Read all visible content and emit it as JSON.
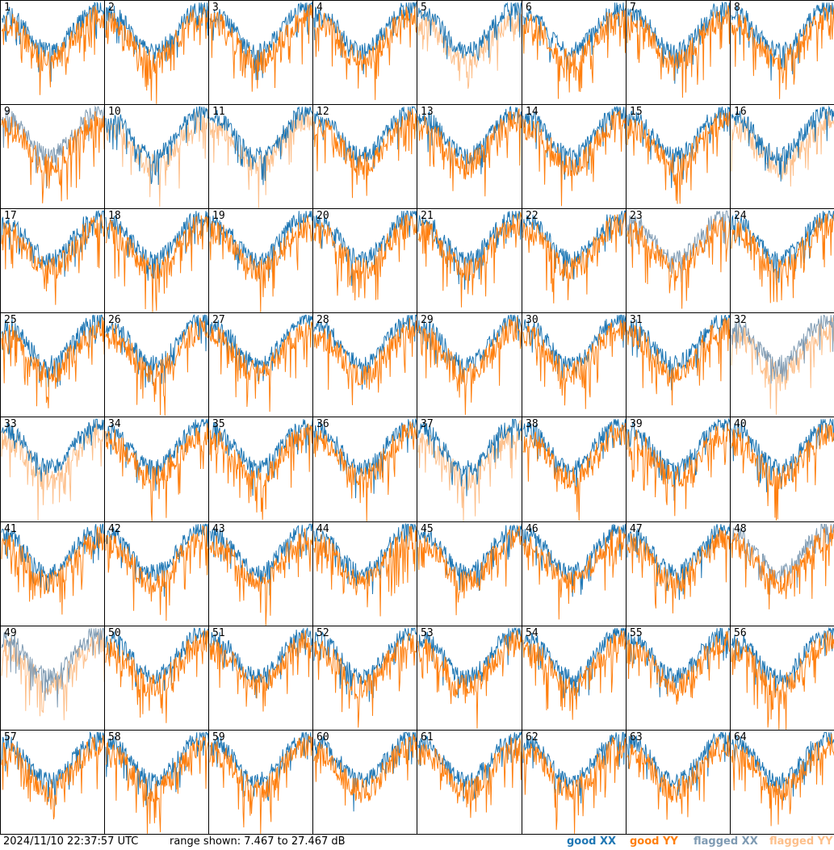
{
  "chart_data": {
    "type": "line",
    "layout": "8x8 small multiples of spectra",
    "timestamp": "2024/11/10 22:37:57 UTC",
    "range_text": "range shown: 7.467 to 27.467 dB",
    "ylim": [
      7.467,
      27.467
    ],
    "legend": [
      {
        "label": "good",
        "pol": "XX",
        "color": "#1f77b4"
      },
      {
        "label": "good",
        "pol": "YY",
        "color": "#ff7f0e"
      },
      {
        "label": "flagged",
        "pol": "XX",
        "color": "#7f9bb3"
      },
      {
        "label": "flagged",
        "pol": "YY",
        "color": "#fdbf8a"
      }
    ],
    "legend_placement": "bottom-right",
    "panels": [
      {
        "id": "1",
        "xx": "good",
        "yy": "good"
      },
      {
        "id": "2",
        "xx": "good",
        "yy": "good"
      },
      {
        "id": "3",
        "xx": "good",
        "yy": "good"
      },
      {
        "id": "4",
        "xx": "good",
        "yy": "good"
      },
      {
        "id": "5",
        "xx": "good",
        "yy": "flagged"
      },
      {
        "id": "6",
        "xx": "good",
        "yy": "good"
      },
      {
        "id": "7",
        "xx": "good",
        "yy": "good"
      },
      {
        "id": "8",
        "xx": "good",
        "yy": "good"
      },
      {
        "id": "9",
        "xx": "flagged",
        "yy": "good"
      },
      {
        "id": "10",
        "xx": "good",
        "yy": "flagged"
      },
      {
        "id": "11",
        "xx": "good",
        "yy": "flagged"
      },
      {
        "id": "12",
        "xx": "good",
        "yy": "good"
      },
      {
        "id": "13",
        "xx": "good",
        "yy": "good"
      },
      {
        "id": "14",
        "xx": "good",
        "yy": "good"
      },
      {
        "id": "15",
        "xx": "good",
        "yy": "good"
      },
      {
        "id": "16",
        "xx": "good",
        "yy": "flagged"
      },
      {
        "id": "17",
        "xx": "good",
        "yy": "good"
      },
      {
        "id": "18",
        "xx": "good",
        "yy": "good"
      },
      {
        "id": "19",
        "xx": "good",
        "yy": "good"
      },
      {
        "id": "20",
        "xx": "good",
        "yy": "good"
      },
      {
        "id": "21",
        "xx": "good",
        "yy": "good"
      },
      {
        "id": "22",
        "xx": "good",
        "yy": "good"
      },
      {
        "id": "23",
        "xx": "flagged",
        "yy": "good"
      },
      {
        "id": "24",
        "xx": "good",
        "yy": "good"
      },
      {
        "id": "25",
        "xx": "good",
        "yy": "good"
      },
      {
        "id": "26",
        "xx": "good",
        "yy": "good"
      },
      {
        "id": "27",
        "xx": "good",
        "yy": "good"
      },
      {
        "id": "28",
        "xx": "good",
        "yy": "good"
      },
      {
        "id": "29",
        "xx": "good",
        "yy": "good"
      },
      {
        "id": "30",
        "xx": "good",
        "yy": "good"
      },
      {
        "id": "31",
        "xx": "good",
        "yy": "good"
      },
      {
        "id": "32",
        "xx": "flagged",
        "yy": "flagged"
      },
      {
        "id": "33",
        "xx": "good",
        "yy": "flagged"
      },
      {
        "id": "34",
        "xx": "good",
        "yy": "good"
      },
      {
        "id": "35",
        "xx": "good",
        "yy": "good"
      },
      {
        "id": "36",
        "xx": "good",
        "yy": "good"
      },
      {
        "id": "37",
        "xx": "good",
        "yy": "flagged"
      },
      {
        "id": "38",
        "xx": "good",
        "yy": "good"
      },
      {
        "id": "39",
        "xx": "good",
        "yy": "good"
      },
      {
        "id": "40",
        "xx": "good",
        "yy": "good"
      },
      {
        "id": "41",
        "xx": "good",
        "yy": "good"
      },
      {
        "id": "42",
        "xx": "good",
        "yy": "good"
      },
      {
        "id": "43",
        "xx": "good",
        "yy": "good"
      },
      {
        "id": "44",
        "xx": "good",
        "yy": "good"
      },
      {
        "id": "45",
        "xx": "good",
        "yy": "good"
      },
      {
        "id": "46",
        "xx": "good",
        "yy": "good"
      },
      {
        "id": "47",
        "xx": "good",
        "yy": "good"
      },
      {
        "id": "48",
        "xx": "flagged",
        "yy": "good"
      },
      {
        "id": "49",
        "xx": "flagged",
        "yy": "flagged"
      },
      {
        "id": "50",
        "xx": "good",
        "yy": "good"
      },
      {
        "id": "51",
        "xx": "good",
        "yy": "good"
      },
      {
        "id": "52",
        "xx": "good",
        "yy": "good"
      },
      {
        "id": "53",
        "xx": "good",
        "yy": "good"
      },
      {
        "id": "54",
        "xx": "good",
        "yy": "good"
      },
      {
        "id": "55",
        "xx": "good",
        "yy": "good"
      },
      {
        "id": "56",
        "xx": "good",
        "yy": "good"
      },
      {
        "id": "57",
        "xx": "good",
        "yy": "good"
      },
      {
        "id": "58",
        "xx": "good",
        "yy": "good"
      },
      {
        "id": "59",
        "xx": "good",
        "yy": "good"
      },
      {
        "id": "60",
        "xx": "good",
        "yy": "good"
      },
      {
        "id": "61",
        "xx": "good",
        "yy": "good"
      },
      {
        "id": "62",
        "xx": "good",
        "yy": "good"
      },
      {
        "id": "63",
        "xx": "good",
        "yy": "good"
      },
      {
        "id": "64",
        "xx": "good",
        "yy": "good"
      }
    ]
  },
  "footer": {
    "timestamp": "2024/11/10 22:37:57 UTC",
    "range": "range shown: 7.467 to 27.467 dB",
    "legend": {
      "good_xx": "good XX",
      "good_yy": "good YY",
      "flagged_xx": "flagged XX",
      "flagged_yy": "flagged YY"
    }
  }
}
